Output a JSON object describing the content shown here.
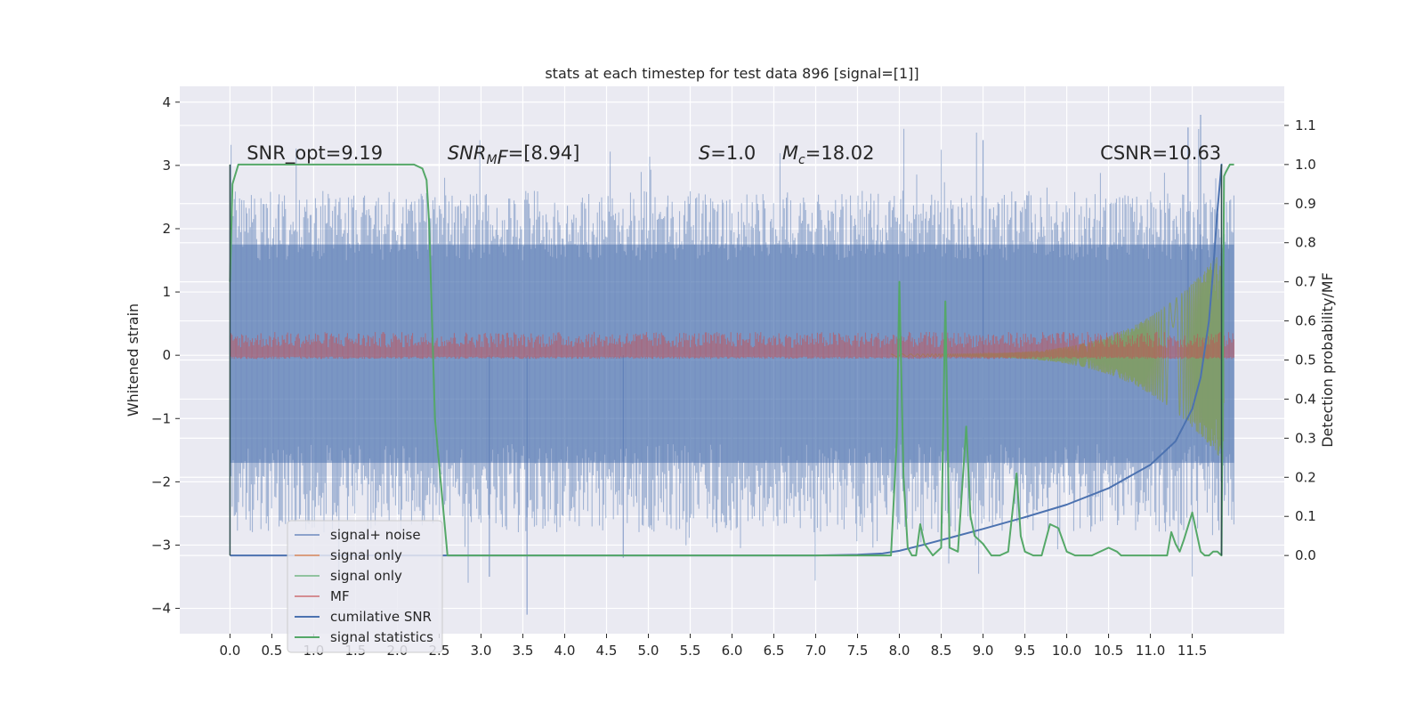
{
  "chart_data": {
    "type": "line",
    "title": "stats at each timestep for test data 896 [signal=[1]]",
    "xlabel": "",
    "ylabel": "Whitened strain",
    "ylabel_right": "Detection probability/MF",
    "xlim": [
      -0.6,
      12.6
    ],
    "ylim": [
      -4.4,
      4.25
    ],
    "ylim_right": [
      -0.2,
      1.2
    ],
    "x_ticks": [
      "0.0",
      "0.5",
      "1.0",
      "1.5",
      "2.0",
      "2.5",
      "3.0",
      "3.5",
      "4.0",
      "4.5",
      "5.0",
      "5.5",
      "6.0",
      "6.5",
      "7.0",
      "7.5",
      "8.0",
      "8.5",
      "9.0",
      "9.5",
      "10.0",
      "10.5",
      "11.0",
      "11.5"
    ],
    "y_ticks": [
      "4",
      "3",
      "2",
      "1",
      "0",
      "−1",
      "−2",
      "−3",
      "−4"
    ],
    "y_ticks_right": [
      "1.1",
      "1.0",
      "0.9",
      "0.8",
      "0.7",
      "0.6",
      "0.5",
      "0.4",
      "0.3",
      "0.2",
      "0.1",
      "0.0"
    ],
    "grid": true,
    "legend_position": "lower-left",
    "annotations": [
      {
        "text": "SNR_opt=9.19",
        "x": 0.2,
        "y": 3.1
      },
      {
        "text": "SNR_MF=[8.94]",
        "x": 2.6,
        "y": 3.1
      },
      {
        "text": "S=1.0",
        "x": 5.6,
        "y": 3.1
      },
      {
        "text": "M_c=18.02",
        "x": 6.6,
        "y": 3.1
      },
      {
        "text": "CSNR=10.63",
        "x": 10.4,
        "y": 3.1
      }
    ],
    "series": [
      {
        "name": "signal+ noise",
        "color": "#4c72b0",
        "alpha": 0.5,
        "axis": "left",
        "kind": "noise",
        "range": [
          -2.4,
          2.3
        ],
        "extremes": [
          3.8,
          -4.1
        ],
        "x_range": [
          0,
          12
        ]
      },
      {
        "name": "signal only",
        "color": "#dd8452",
        "alpha": 0.7,
        "axis": "left",
        "kind": "chirp",
        "x_range": [
          0,
          12
        ]
      },
      {
        "name": "signal only",
        "color": "#55a868",
        "alpha": 0.6,
        "axis": "left",
        "kind": "chirp",
        "x_range": [
          0,
          12
        ]
      },
      {
        "name": "MF",
        "color": "#c44e52",
        "alpha": 0.6,
        "axis": "left",
        "kind": "noise",
        "range": [
          -0.05,
          0.3
        ],
        "x_range": [
          0,
          12
        ]
      },
      {
        "name": "cumilative SNR",
        "color": "#4c72b0",
        "alpha": 1.0,
        "axis": "right",
        "x": [
          0.0,
          6.0,
          7.0,
          7.5,
          7.8,
          8.0,
          8.3,
          8.6,
          9.0,
          9.5,
          10.0,
          10.5,
          11.0,
          11.3,
          11.5,
          11.6,
          11.7,
          11.75,
          11.8,
          11.85,
          11.86
        ],
        "y": [
          0.0,
          0.0,
          0.0,
          0.002,
          0.005,
          0.012,
          0.028,
          0.045,
          0.068,
          0.098,
          0.13,
          0.172,
          0.232,
          0.292,
          0.375,
          0.455,
          0.6,
          0.73,
          0.88,
          1.0,
          1.0
        ]
      },
      {
        "name": "signal statistics",
        "color": "#55a868",
        "alpha": 1.0,
        "axis": "right",
        "x": [
          0.0,
          0.03,
          0.1,
          0.2,
          0.5,
          1.0,
          1.5,
          2.0,
          2.2,
          2.3,
          2.35,
          2.38,
          2.45,
          2.6,
          3.0,
          4.0,
          5.0,
          6.0,
          7.0,
          7.9,
          7.97,
          8.0,
          8.05,
          8.1,
          8.15,
          8.2,
          8.25,
          8.3,
          8.4,
          8.5,
          8.55,
          8.6,
          8.7,
          8.8,
          8.85,
          8.9,
          9.0,
          9.1,
          9.2,
          9.3,
          9.4,
          9.45,
          9.5,
          9.6,
          9.7,
          9.8,
          9.9,
          10.0,
          10.1,
          10.3,
          10.5,
          10.6,
          10.65,
          10.7,
          10.8,
          11.0,
          11.2,
          11.25,
          11.3,
          11.35,
          11.4,
          11.5,
          11.55,
          11.6,
          11.65,
          11.7,
          11.75,
          11.8,
          11.85,
          11.88,
          11.9,
          11.95,
          12.0
        ],
        "y": [
          0.7,
          0.95,
          1.0,
          1.0,
          1.0,
          1.0,
          1.0,
          1.0,
          1.0,
          0.99,
          0.96,
          0.85,
          0.35,
          0.0,
          0.0,
          0.0,
          0.0,
          0.0,
          0.0,
          0.0,
          0.3,
          0.7,
          0.2,
          0.02,
          0.0,
          0.0,
          0.08,
          0.03,
          0.0,
          0.02,
          0.65,
          0.02,
          0.01,
          0.33,
          0.1,
          0.05,
          0.03,
          0.0,
          0.0,
          0.01,
          0.21,
          0.05,
          0.01,
          0.0,
          0.0,
          0.08,
          0.07,
          0.01,
          0.0,
          0.0,
          0.02,
          0.01,
          0.0,
          0.0,
          0.0,
          0.0,
          0.0,
          0.06,
          0.03,
          0.01,
          0.04,
          0.11,
          0.06,
          0.01,
          0.0,
          0.0,
          0.01,
          0.01,
          0.0,
          0.97,
          0.98,
          1.0,
          1.0
        ]
      }
    ]
  }
}
